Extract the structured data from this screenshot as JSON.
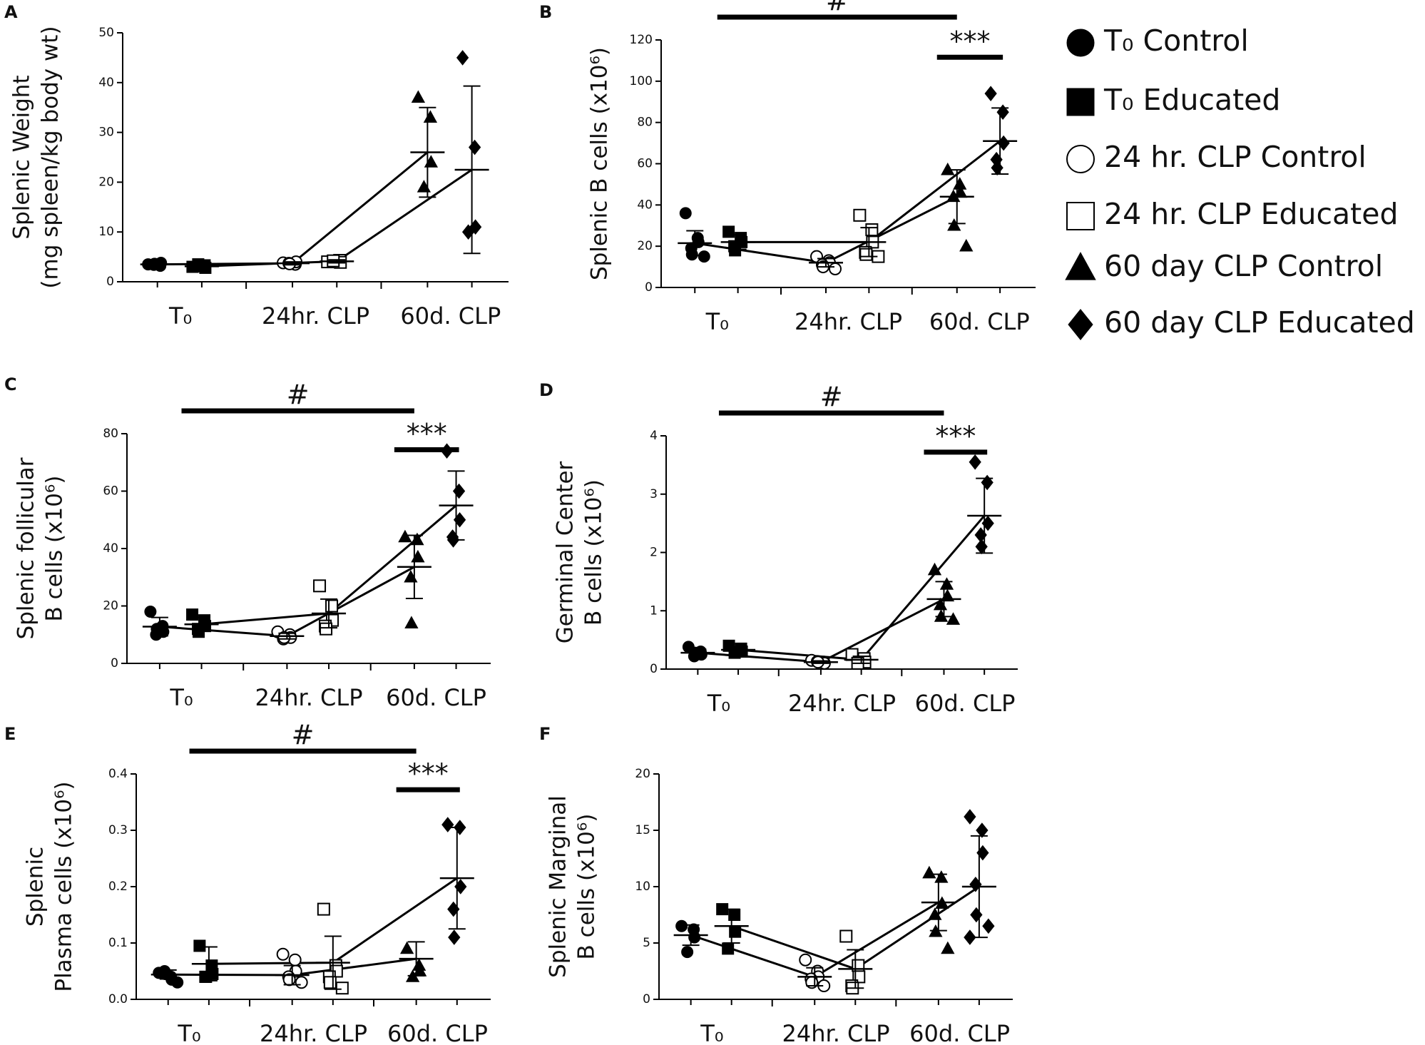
{
  "legend": [
    {
      "name": "T₀ Control",
      "marker": "circle"
    },
    {
      "name": "T₀ Educated",
      "marker": "square"
    },
    {
      "name": "24 hr. CLP Control",
      "marker": "open-circle"
    },
    {
      "name": "24 hr. CLP Educated",
      "marker": "open-square"
    },
    {
      "name": "60 day CLP Control",
      "marker": "triangle"
    },
    {
      "name": "60 day CLP Educated",
      "marker": "diamond"
    }
  ],
  "chart_data": [
    {
      "type": "dot",
      "label": "A",
      "ylabel": [
        "Splenic Weight",
        "(mg spleen/kg body wt)"
      ],
      "categories": [
        "T₀",
        "24hr. CLP",
        "60d. CLP"
      ],
      "ylim": [
        0,
        50
      ],
      "yticks": [
        0,
        10,
        20,
        30,
        40,
        50
      ],
      "annotations": [],
      "groups": [
        {
          "points": [
            3.5,
            3.2,
            3.8,
            3.4,
            3.6
          ],
          "mean": 3.5,
          "error": 0.3
        },
        {
          "points": [
            3.0,
            3.3,
            2.8,
            3.5,
            3.1
          ],
          "mean": 3.1,
          "error": 0.3
        },
        {
          "points": [
            3.8,
            3.5,
            4.0,
            3.7,
            3.6
          ],
          "mean": 3.7,
          "error": 0.3
        },
        {
          "points": [
            4.0,
            4.3,
            3.9,
            4.2
          ],
          "mean": 4.1,
          "error": 0.3
        },
        {
          "points": [
            37,
            33,
            24,
            19
          ],
          "mean": 26,
          "error": 9
        },
        {
          "points": [
            45,
            27,
            11,
            10
          ],
          "mean": 22.5,
          "error": 16.8
        }
      ]
    },
    {
      "type": "dot",
      "label": "B",
      "ylabel": [
        "Splenic B cells (x10⁶)"
      ],
      "categories": [
        "T₀",
        "24hr. CLP",
        "60d. CLP"
      ],
      "ylim": [
        0,
        120
      ],
      "yticks": [
        0,
        20,
        40,
        60,
        80,
        100,
        120
      ],
      "annotations": [
        "#",
        "***"
      ],
      "groups": [
        {
          "points": [
            36,
            24,
            22,
            19,
            16,
            15
          ],
          "mean": 21.5,
          "error": 6
        },
        {
          "points": [
            27,
            24,
            22,
            20,
            18
          ],
          "mean": 22,
          "error": 3.5
        },
        {
          "points": [
            15,
            13,
            12,
            11,
            10,
            9
          ],
          "mean": 12,
          "error": 2
        },
        {
          "points": [
            35,
            28,
            22,
            17,
            16,
            15
          ],
          "mean": 22,
          "error": 7
        },
        {
          "points": [
            57,
            50,
            46,
            44,
            30,
            20
          ],
          "mean": 44,
          "error": 13
        },
        {
          "points": [
            94,
            85,
            70,
            62,
            58
          ],
          "mean": 71,
          "error": 16
        }
      ]
    },
    {
      "type": "dot",
      "label": "C",
      "ylabel": [
        "Splenic follicular",
        "B cells (x10⁶)"
      ],
      "categories": [
        "T₀",
        "24hr. CLP",
        "60d. CLP"
      ],
      "ylim": [
        0,
        80
      ],
      "yticks": [
        0,
        20,
        40,
        60,
        80
      ],
      "annotations": [
        "#",
        "***"
      ],
      "groups": [
        {
          "points": [
            18,
            13,
            11,
            10,
            12
          ],
          "mean": 12.8,
          "error": 3.2
        },
        {
          "points": [
            17,
            15,
            13,
            12,
            11
          ],
          "mean": 13.6,
          "error": 2.4
        },
        {
          "points": [
            11,
            10,
            9,
            8.5,
            9
          ],
          "mean": 9.5,
          "error": 1
        },
        {
          "points": [
            27,
            20,
            15,
            13,
            12
          ],
          "mean": 17.4,
          "error": 5
        },
        {
          "points": [
            44,
            43,
            37,
            30,
            14
          ],
          "mean": 33.6,
          "error": 11
        },
        {
          "points": [
            74,
            60,
            50,
            44,
            43
          ],
          "mean": 55,
          "error": 12
        }
      ]
    },
    {
      "type": "dot",
      "label": "D",
      "ylabel": [
        "Germinal Center",
        "B cells (x10⁶)"
      ],
      "categories": [
        "T₀",
        "24hr. CLP",
        "60d. CLP"
      ],
      "ylim": [
        0,
        4
      ],
      "yticks": [
        0,
        1,
        2,
        3,
        4
      ],
      "annotations": [
        "#",
        "***"
      ],
      "groups": [
        {
          "points": [
            0.38,
            0.3,
            0.25,
            0.22,
            0.28
          ],
          "mean": 0.28,
          "error": 0.06
        },
        {
          "points": [
            0.4,
            0.35,
            0.3,
            0.28
          ],
          "mean": 0.33,
          "error": 0.05
        },
        {
          "points": [
            0.15,
            0.12,
            0.1,
            0.13,
            0.12
          ],
          "mean": 0.12,
          "error": 0.02
        },
        {
          "points": [
            0.25,
            0.18,
            0.12,
            0.1
          ],
          "mean": 0.16,
          "error": 0.06
        },
        {
          "points": [
            1.7,
            1.45,
            1.25,
            1.1,
            0.9,
            0.85
          ],
          "mean": 1.2,
          "error": 0.3
        },
        {
          "points": [
            3.55,
            3.2,
            2.5,
            2.3,
            2.1
          ],
          "mean": 2.63,
          "error": 0.64
        }
      ]
    },
    {
      "type": "dot",
      "label": "E",
      "ylabel": [
        "Splenic",
        "Plasma  cells (x10⁶)"
      ],
      "categories": [
        "T₀",
        "24hr. CLP",
        "60d. CLP"
      ],
      "ylim": [
        0,
        0.4
      ],
      "yticks": [
        {
          "value": 0,
          "label": "0.0"
        },
        0.1,
        0.2,
        0.3,
        0.4
      ],
      "annotations": [
        "#",
        "***"
      ],
      "groups": [
        {
          "points": [
            0.047,
            0.04,
            0.035,
            0.05,
            0.045,
            0.03
          ],
          "mean": 0.044,
          "error": 0.008
        },
        {
          "points": [
            0.095,
            0.06,
            0.045,
            0.04,
            0.04
          ],
          "mean": 0.063,
          "error": 0.03
        },
        {
          "points": [
            0.08,
            0.07,
            0.05,
            0.04,
            0.035,
            0.03
          ],
          "mean": 0.043,
          "error": 0.017
        },
        {
          "points": [
            0.16,
            0.06,
            0.05,
            0.04,
            0.03,
            0.02
          ],
          "mean": 0.065,
          "error": 0.047
        },
        {
          "points": [
            0.09,
            0.06,
            0.05,
            0.04
          ],
          "mean": 0.072,
          "error": 0.03
        },
        {
          "points": [
            0.31,
            0.305,
            0.2,
            0.16,
            0.11
          ],
          "mean": 0.215,
          "error": 0.09
        }
      ]
    },
    {
      "type": "dot",
      "label": "F",
      "ylabel": [
        "Splenic Marginal",
        "B cells (x10⁶)"
      ],
      "categories": [
        "T₀",
        "24hr. CLP",
        "60d. CLP"
      ],
      "ylim": [
        0,
        20
      ],
      "yticks": [
        0,
        5,
        10,
        15,
        20
      ],
      "annotations": [],
      "groups": [
        {
          "points": [
            6.5,
            6.2,
            5.5,
            4.2
          ],
          "mean": 5.7,
          "error": 0.9
        },
        {
          "points": [
            8,
            7.5,
            6,
            4.5
          ],
          "mean": 6.5,
          "error": 1.5
        },
        {
          "points": [
            3.5,
            2.5,
            2,
            1.8,
            1.5,
            1.2
          ],
          "mean": 2,
          "error": 0.8
        },
        {
          "points": [
            5.6,
            3,
            2,
            1.2,
            1
          ],
          "mean": 2.7,
          "error": 1.7
        },
        {
          "points": [
            11.2,
            10.8,
            8.5,
            7.5,
            6,
            4.5
          ],
          "mean": 8.6,
          "error": 2.5
        },
        {
          "points": [
            16.2,
            15,
            13,
            10.2,
            7.5,
            6.5,
            5.5
          ],
          "mean": 10,
          "error": 4.5
        }
      ]
    }
  ]
}
